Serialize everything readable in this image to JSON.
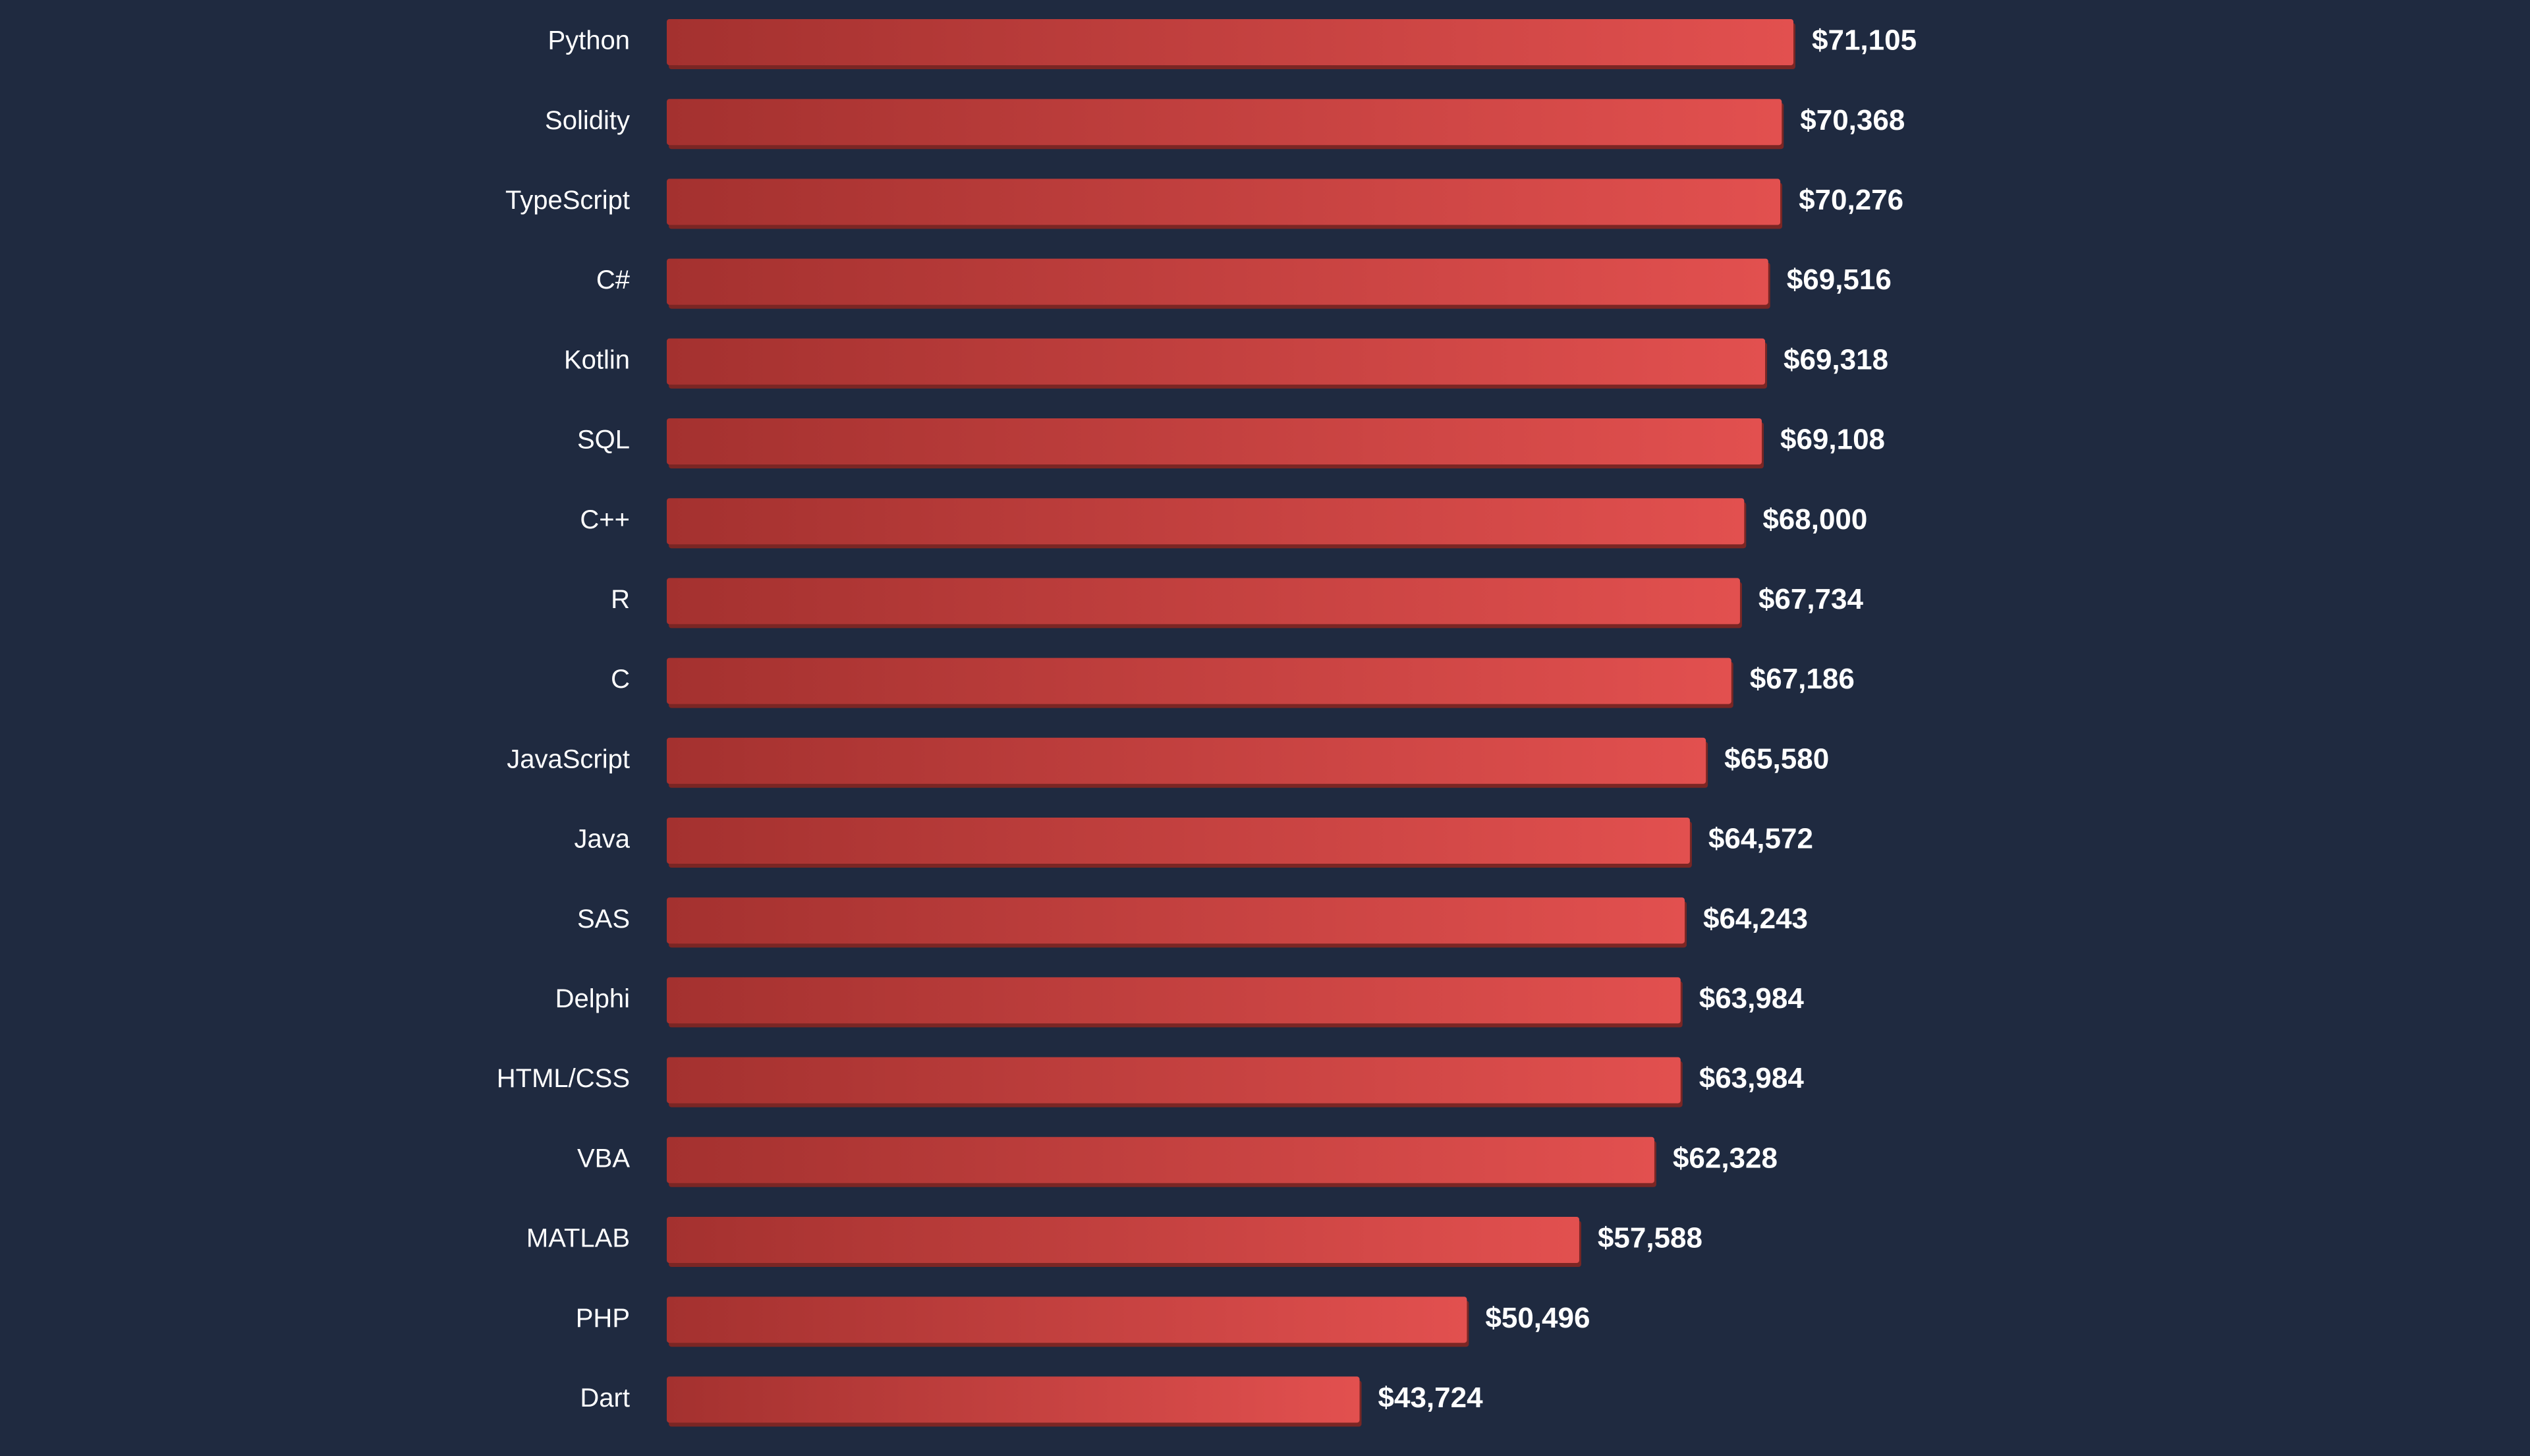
{
  "chart_data": {
    "type": "bar",
    "orientation": "horizontal",
    "title": "",
    "xlabel": "",
    "ylabel": "",
    "grid": false,
    "legend": "none",
    "value_prefix": "$",
    "categories": [
      "Python",
      "Solidity",
      "TypeScript",
      "C#",
      "Kotlin",
      "SQL",
      "C++",
      "R",
      "C",
      "JavaScript",
      "Java",
      "SAS",
      "Delphi",
      "HTML/CSS",
      "VBA",
      "MATLAB",
      "PHP",
      "Dart"
    ],
    "values": [
      71105,
      70368,
      70276,
      69516,
      69318,
      69108,
      68000,
      67734,
      67186,
      65580,
      64572,
      64243,
      63984,
      63984,
      62328,
      57588,
      50496,
      43724
    ],
    "value_labels": [
      "$71,105",
      "$70,368",
      "$70,276",
      "$69,516",
      "$69,318",
      "$69,108",
      "$68,000",
      "$67,734",
      "$67,186",
      "$65,580",
      "$64,572",
      "$64,243",
      "$63,984",
      "$63,984",
      "$62,328",
      "$57,588",
      "$50,496",
      "$43,724"
    ],
    "xlim": [
      0,
      71105
    ],
    "colors": {
      "background": "#1f2a40",
      "bar_start": "#a4312f",
      "bar_end": "#e2504f",
      "bar_shadow": "#7a2624",
      "text": "#ffffff"
    }
  }
}
